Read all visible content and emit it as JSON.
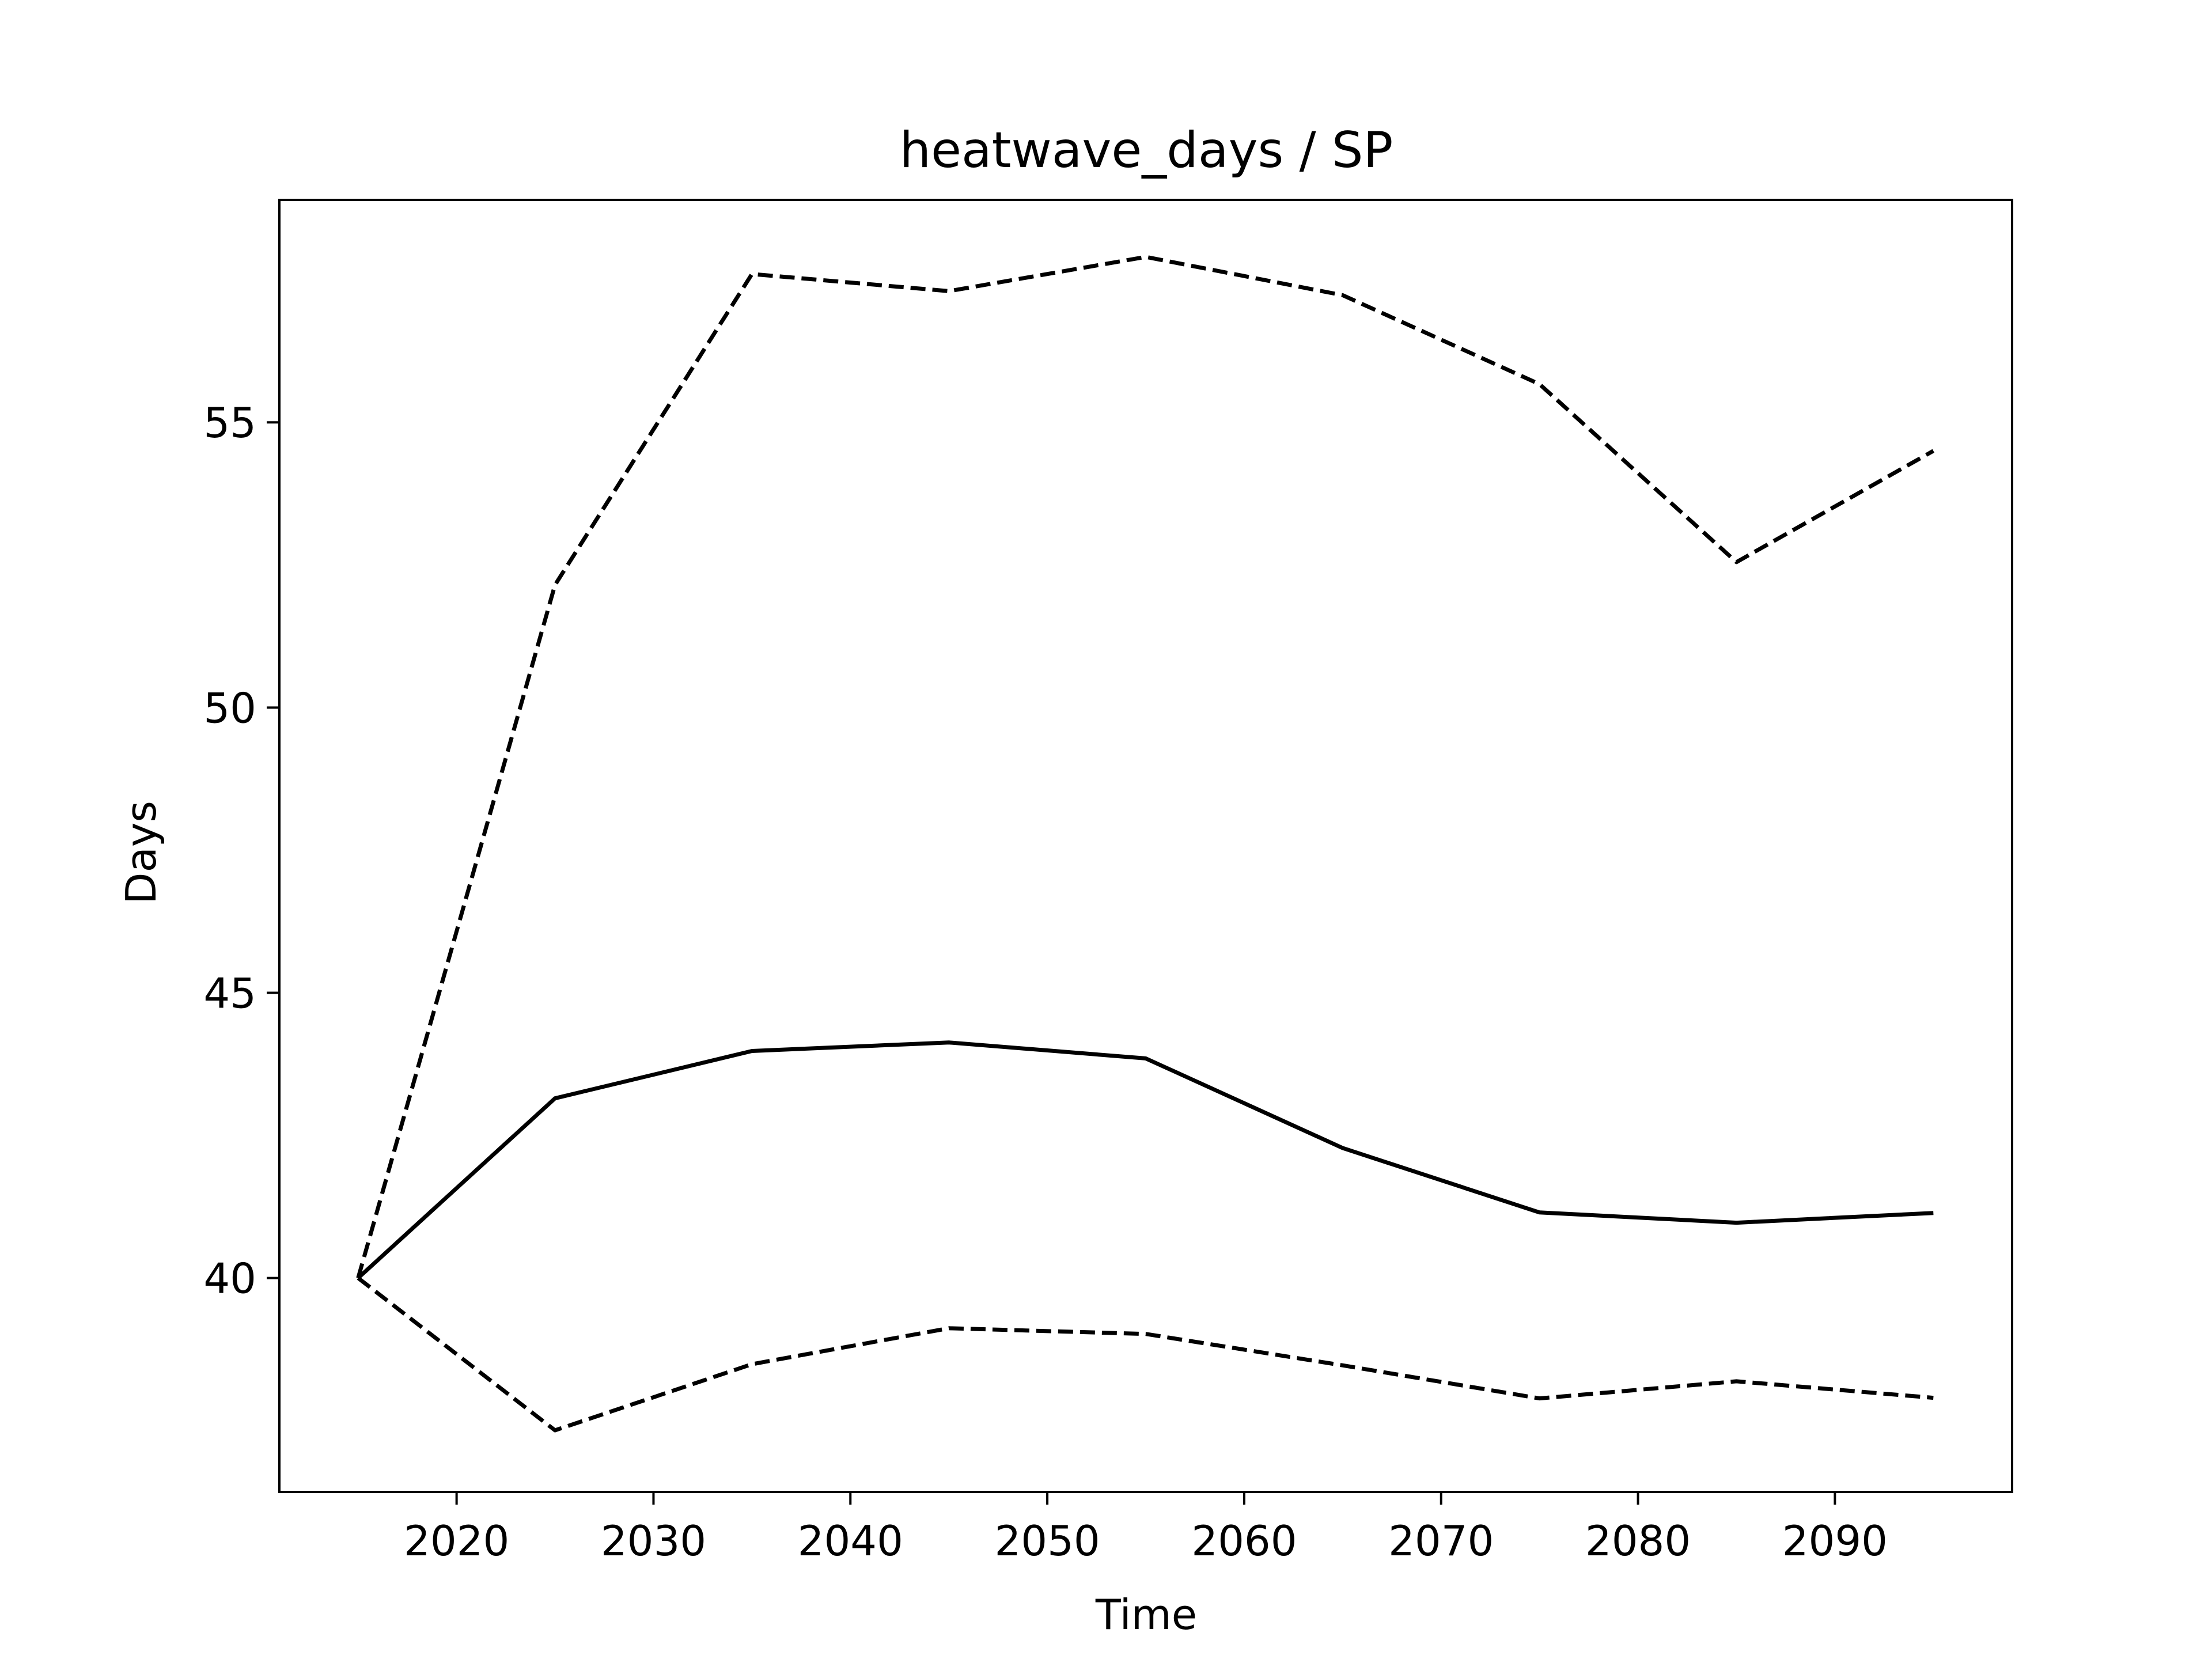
{
  "chart_data": {
    "type": "line",
    "title": "heatwave_days / SP",
    "xlabel": "Time",
    "ylabel": "Days",
    "xlim": [
      2011,
      2099
    ],
    "ylim": [
      36.25,
      58.9
    ],
    "xticks": [
      2020,
      2030,
      2040,
      2050,
      2060,
      2070,
      2080,
      2090
    ],
    "yticks": [
      40,
      45,
      50,
      55
    ],
    "grid": false,
    "x": [
      2015,
      2025,
      2035,
      2045,
      2055,
      2065,
      2075,
      2085,
      2095
    ],
    "series": [
      {
        "style": "solid",
        "color": "#000000",
        "values": [
          40.0,
          43.15,
          43.98,
          44.13,
          43.85,
          42.28,
          41.15,
          40.97,
          41.14
        ]
      },
      {
        "style": "dashed",
        "color": "#000000",
        "values": [
          40.0,
          52.15,
          57.6,
          57.3,
          57.9,
          57.23,
          55.67,
          52.55,
          54.5
        ]
      },
      {
        "style": "dashed",
        "color": "#000000",
        "values": [
          40.0,
          37.33,
          38.49,
          39.12,
          39.02,
          38.47,
          37.89,
          38.19,
          37.9
        ]
      }
    ]
  }
}
